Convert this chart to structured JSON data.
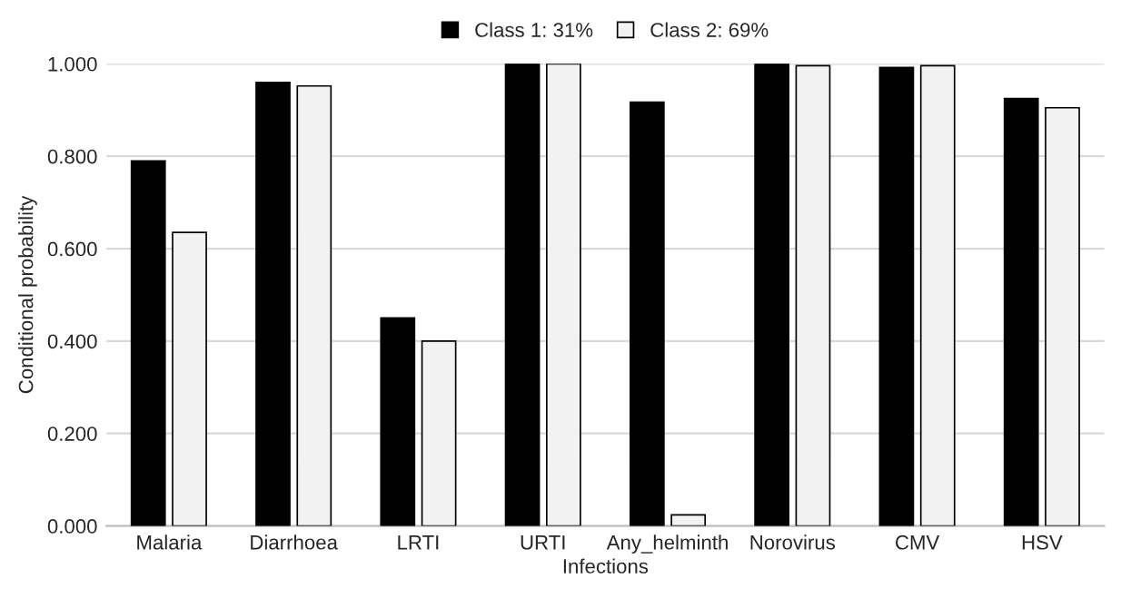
{
  "chart_data": {
    "type": "bar",
    "xlabel": "Infections",
    "ylabel": "Conditional probability",
    "categories": [
      "Malaria",
      "Diarrhoea",
      "LRTI",
      "URTI",
      "Any_helminth",
      "Norovirus",
      "CMV",
      "HSV"
    ],
    "series": [
      {
        "name": "Class 1: 31%",
        "color": "#000000",
        "values": [
          0.79,
          0.96,
          0.45,
          1.0,
          0.917,
          1.0,
          0.992,
          0.925
        ]
      },
      {
        "name": "Class 2: 69%",
        "color": "#f2f2f2",
        "values": [
          0.635,
          0.952,
          0.4,
          1.0,
          0.024,
          0.996,
          0.996,
          0.905
        ]
      }
    ],
    "ylim": [
      0,
      1
    ],
    "yticks": [
      {
        "value": 0,
        "label": "0.000"
      },
      {
        "value": 0.2,
        "label": "0.200"
      },
      {
        "value": 0.4,
        "label": "0.400"
      },
      {
        "value": 0.6,
        "label": "0.600"
      },
      {
        "value": 0.8,
        "label": "0.800"
      },
      {
        "value": 1.0,
        "label": "1.000"
      }
    ],
    "grid": "y",
    "legend": "top"
  }
}
